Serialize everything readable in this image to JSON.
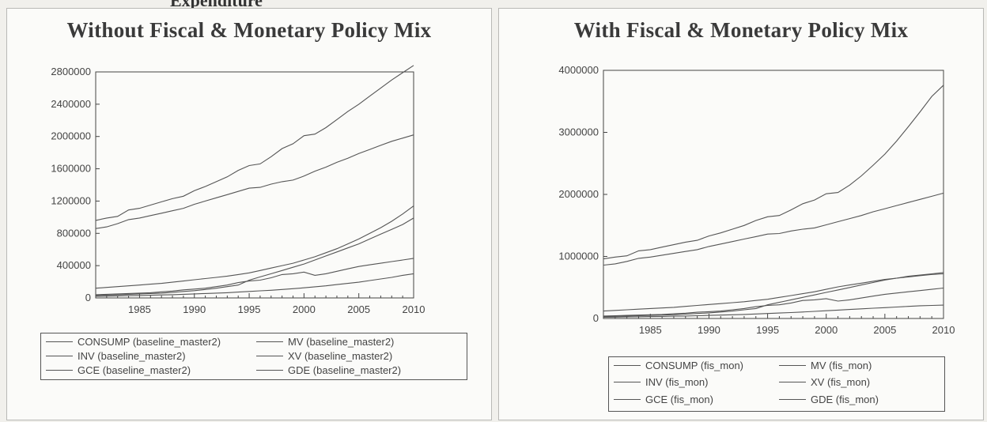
{
  "fragment_text": "Expenditure",
  "chart_data": [
    {
      "type": "line",
      "title": "Without Fiscal & Monetary Policy Mix",
      "xlabel": "",
      "ylabel": "",
      "xlim": [
        1981,
        2010
      ],
      "ylim": [
        0,
        2800000
      ],
      "x_ticks": [
        1985,
        1990,
        1995,
        2000,
        2005,
        2010
      ],
      "y_ticks": [
        0,
        400000,
        800000,
        1200000,
        1600000,
        2000000,
        2400000,
        2800000
      ],
      "x_tick_labels": [
        "1985",
        "1990",
        "1995",
        "2000",
        "2005",
        "2010"
      ],
      "y_tick_labels": [
        "0",
        "400000",
        "800000",
        "1200000",
        "1600000",
        "2000000",
        "2400000",
        "2800000"
      ],
      "grid": false,
      "legend_position": "bottom",
      "x": [
        1981,
        1982,
        1983,
        1984,
        1985,
        1986,
        1987,
        1988,
        1989,
        1990,
        1991,
        1992,
        1993,
        1994,
        1995,
        1996,
        1997,
        1998,
        1999,
        2000,
        2001,
        2002,
        2003,
        2004,
        2005,
        2006,
        2007,
        2008,
        2009,
        2010
      ],
      "series": [
        {
          "name": "CONSUMP (baseline_master2)",
          "values": [
            960000,
            990000,
            1010000,
            1090000,
            1110000,
            1150000,
            1190000,
            1230000,
            1260000,
            1330000,
            1380000,
            1440000,
            1500000,
            1580000,
            1640000,
            1660000,
            1750000,
            1850000,
            1910000,
            2010000,
            2030000,
            2110000,
            2210000,
            2310000,
            2400000,
            2500000,
            2600000,
            2700000,
            2790000,
            2880000
          ]
        },
        {
          "name": "MV (baseline_master2)",
          "values": [
            860000,
            880000,
            920000,
            970000,
            990000,
            1020000,
            1050000,
            1080000,
            1110000,
            1160000,
            1200000,
            1240000,
            1280000,
            1320000,
            1360000,
            1370000,
            1410000,
            1440000,
            1460000,
            1510000,
            1570000,
            1620000,
            1680000,
            1730000,
            1790000,
            1840000,
            1890000,
            1940000,
            1980000,
            2020000
          ]
        },
        {
          "name": "INV (baseline_master2)",
          "values": [
            120000,
            130000,
            140000,
            150000,
            160000,
            170000,
            180000,
            195000,
            210000,
            225000,
            240000,
            255000,
            270000,
            290000,
            310000,
            340000,
            370000,
            400000,
            430000,
            470000,
            510000,
            560000,
            610000,
            670000,
            730000,
            800000,
            870000,
            950000,
            1040000,
            1140000
          ]
        },
        {
          "name": "XV (baseline_master2)",
          "values": [
            40000,
            45000,
            50000,
            55000,
            60000,
            65000,
            75000,
            85000,
            100000,
            110000,
            120000,
            140000,
            160000,
            190000,
            210000,
            220000,
            250000,
            290000,
            300000,
            320000,
            280000,
            300000,
            330000,
            360000,
            390000,
            410000,
            430000,
            450000,
            470000,
            490000
          ]
        },
        {
          "name": "GCE (baseline_master2)",
          "values": [
            20000,
            22000,
            25000,
            28000,
            30000,
            33000,
            37000,
            40000,
            45000,
            50000,
            55000,
            60000,
            65000,
            72000,
            80000,
            88000,
            95000,
            105000,
            115000,
            125000,
            138000,
            150000,
            165000,
            180000,
            195000,
            215000,
            235000,
            255000,
            280000,
            300000
          ]
        },
        {
          "name": "GDE (baseline_master2)",
          "values": [
            30000,
            35000,
            40000,
            45000,
            50000,
            55000,
            60000,
            70000,
            80000,
            90000,
            105000,
            120000,
            140000,
            160000,
            220000,
            260000,
            300000,
            340000,
            380000,
            420000,
            470000,
            520000,
            570000,
            620000,
            670000,
            730000,
            790000,
            850000,
            910000,
            990000
          ]
        }
      ]
    },
    {
      "type": "line",
      "title": "With Fiscal & Monetary Policy Mix",
      "xlabel": "",
      "ylabel": "",
      "xlim": [
        1981,
        2010
      ],
      "ylim": [
        0,
        4000000
      ],
      "x_ticks": [
        1985,
        1990,
        1995,
        2000,
        2005,
        2010
      ],
      "y_ticks": [
        0,
        1000000,
        2000000,
        3000000,
        4000000
      ],
      "x_tick_labels": [
        "1985",
        "1990",
        "1995",
        "2000",
        "2005",
        "2010"
      ],
      "y_tick_labels": [
        "0",
        "1000000",
        "2000000",
        "3000000",
        "4000000"
      ],
      "grid": false,
      "legend_position": "bottom",
      "x": [
        1981,
        1982,
        1983,
        1984,
        1985,
        1986,
        1987,
        1988,
        1989,
        1990,
        1991,
        1992,
        1993,
        1994,
        1995,
        1996,
        1997,
        1998,
        1999,
        2000,
        2001,
        2002,
        2003,
        2004,
        2005,
        2006,
        2007,
        2008,
        2009,
        2010
      ],
      "series": [
        {
          "name": "CONSUMP (fis_mon)",
          "values": [
            960000,
            990000,
            1010000,
            1090000,
            1110000,
            1150000,
            1190000,
            1230000,
            1260000,
            1330000,
            1380000,
            1440000,
            1500000,
            1580000,
            1640000,
            1660000,
            1750000,
            1850000,
            1910000,
            2010000,
            2030000,
            2150000,
            2300000,
            2470000,
            2650000,
            2860000,
            3090000,
            3330000,
            3580000,
            3760000
          ]
        },
        {
          "name": "MV (fis_mon)",
          "values": [
            860000,
            880000,
            920000,
            970000,
            990000,
            1020000,
            1050000,
            1080000,
            1110000,
            1160000,
            1200000,
            1240000,
            1280000,
            1320000,
            1360000,
            1370000,
            1410000,
            1440000,
            1460000,
            1510000,
            1560000,
            1610000,
            1660000,
            1720000,
            1770000,
            1820000,
            1870000,
            1920000,
            1970000,
            2020000
          ]
        },
        {
          "name": "INV (fis_mon)",
          "values": [
            120000,
            130000,
            140000,
            150000,
            160000,
            170000,
            180000,
            195000,
            210000,
            225000,
            240000,
            255000,
            270000,
            290000,
            310000,
            340000,
            370000,
            400000,
            430000,
            470000,
            510000,
            540000,
            570000,
            600000,
            630000,
            650000,
            670000,
            690000,
            710000,
            720000
          ]
        },
        {
          "name": "XV (fis_mon)",
          "values": [
            40000,
            45000,
            50000,
            55000,
            60000,
            65000,
            75000,
            85000,
            100000,
            110000,
            120000,
            140000,
            160000,
            190000,
            210000,
            220000,
            250000,
            290000,
            300000,
            320000,
            280000,
            300000,
            330000,
            360000,
            390000,
            410000,
            430000,
            450000,
            470000,
            490000
          ]
        },
        {
          "name": "GCE (fis_mon)",
          "values": [
            20000,
            22000,
            25000,
            28000,
            30000,
            33000,
            37000,
            40000,
            45000,
            50000,
            55000,
            60000,
            65000,
            72000,
            80000,
            88000,
            95000,
            105000,
            115000,
            125000,
            135000,
            145000,
            155000,
            165000,
            175000,
            185000,
            195000,
            205000,
            210000,
            215000
          ]
        },
        {
          "name": "GDE (fis_mon)",
          "values": [
            30000,
            35000,
            40000,
            45000,
            50000,
            55000,
            60000,
            70000,
            80000,
            90000,
            105000,
            120000,
            140000,
            160000,
            220000,
            260000,
            300000,
            340000,
            380000,
            420000,
            460000,
            500000,
            540000,
            580000,
            620000,
            650000,
            680000,
            700000,
            720000,
            740000
          ]
        }
      ]
    }
  ],
  "colors": {
    "line": "#555555",
    "axis": "#444444",
    "panel_bg": "#fbfbf9",
    "page_bg": "#f1f0ec"
  }
}
